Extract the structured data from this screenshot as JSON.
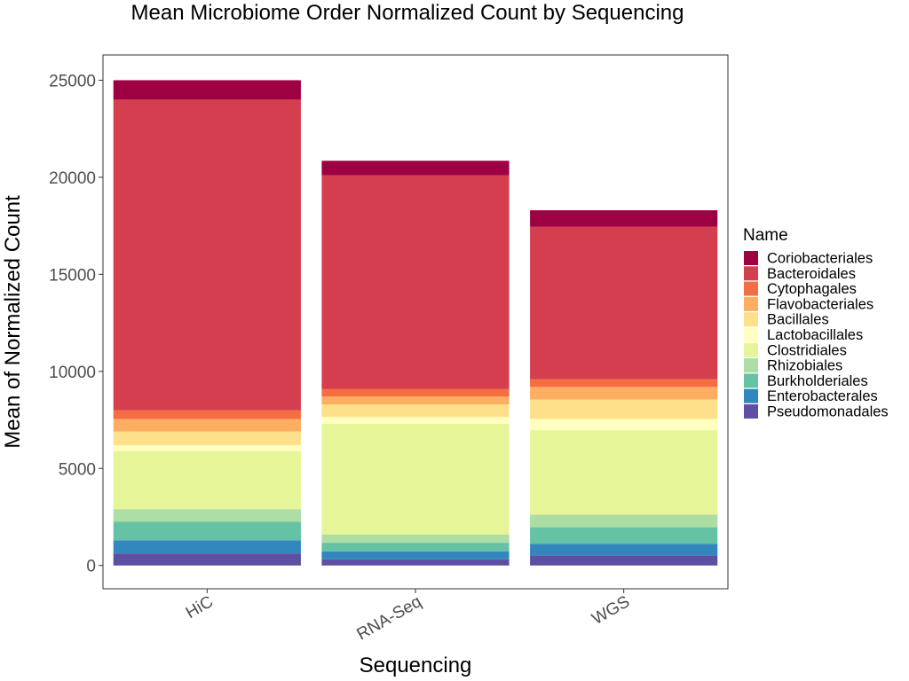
{
  "chart_data": {
    "type": "bar",
    "stacked": true,
    "title": "Mean Microbiome Order Normalized Count by Sequencing",
    "xlabel": "Sequencing",
    "ylabel": "Mean of Normalized Count",
    "categories": [
      "HiC",
      "RNA-Seq",
      "WGS"
    ],
    "ylim": [
      -1200,
      26300
    ],
    "yticks": [
      0,
      5000,
      10000,
      15000,
      20000,
      25000
    ],
    "grid": false,
    "legend_title": "Name",
    "legend_position": "right",
    "series": [
      {
        "name": "Pseudomonadales",
        "color": "#5E4FA2",
        "values": [
          620,
          320,
          520
        ]
      },
      {
        "name": "Enterobacterales",
        "color": "#3288BD",
        "values": [
          680,
          400,
          600
        ]
      },
      {
        "name": "Burkholderiales",
        "color": "#66C2A5",
        "values": [
          950,
          450,
          850
        ]
      },
      {
        "name": "Rhizobiales",
        "color": "#ABDDA4",
        "values": [
          650,
          430,
          650
        ]
      },
      {
        "name": "Clostridiales",
        "color": "#E6F598",
        "values": [
          3000,
          5700,
          4350
        ]
      },
      {
        "name": "Lactobacillales",
        "color": "#FFFFBF",
        "values": [
          300,
          350,
          580
        ]
      },
      {
        "name": "Bacillales",
        "color": "#FEE08B",
        "values": [
          700,
          650,
          1000
        ]
      },
      {
        "name": "Flavobacteriales",
        "color": "#FDAE61",
        "values": [
          650,
          400,
          650
        ]
      },
      {
        "name": "Cytophagales",
        "color": "#F46D43",
        "values": [
          450,
          400,
          400
        ]
      },
      {
        "name": "Bacteroidales",
        "color": "#D53E4F",
        "values": [
          16000,
          11000,
          7850
        ]
      },
      {
        "name": "Coriobacteriales",
        "color": "#9E0142",
        "values": [
          1000,
          750,
          850
        ]
      }
    ]
  }
}
